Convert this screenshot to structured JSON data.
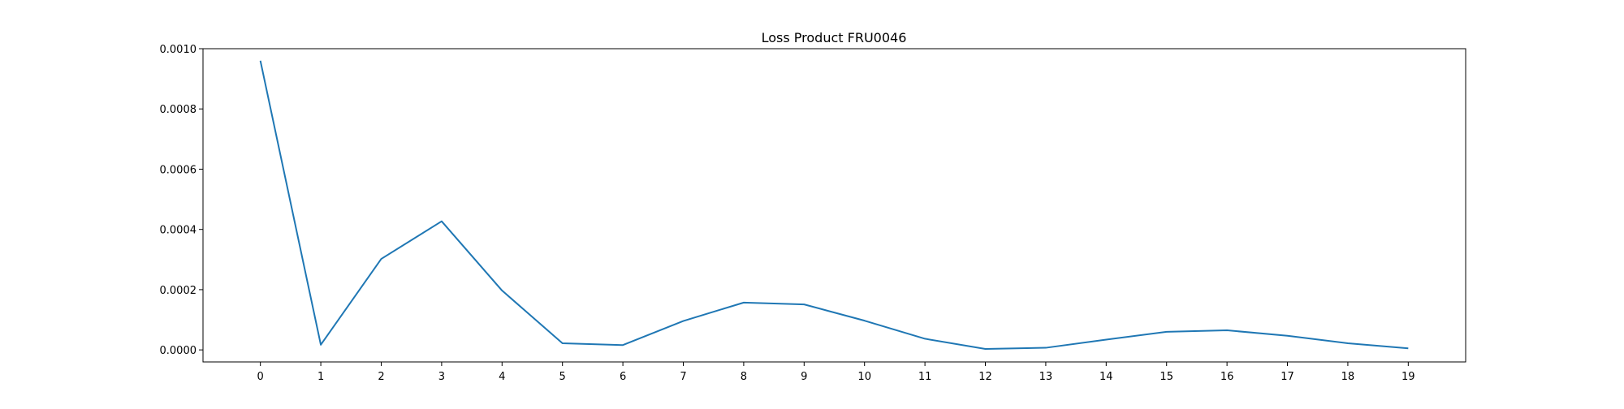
{
  "chart_data": {
    "type": "line",
    "title": "Loss Product FRU0046",
    "xlabel": "",
    "ylabel": "",
    "x": [
      0,
      1,
      2,
      3,
      4,
      5,
      6,
      7,
      8,
      9,
      10,
      11,
      12,
      13,
      14,
      15,
      16,
      17,
      18,
      19
    ],
    "x_tick_labels": [
      "0",
      "1",
      "2",
      "3",
      "4",
      "5",
      "6",
      "7",
      "8",
      "9",
      "10",
      "11",
      "12",
      "13",
      "14",
      "15",
      "16",
      "17",
      "18",
      "19"
    ],
    "xlim": [
      -0.95,
      19.95
    ],
    "ylim": [
      -4e-05,
      0.001
    ],
    "y_ticks": [
      0,
      0.0002,
      0.0004,
      0.0006,
      0.0008,
      0.001
    ],
    "y_tick_labels": [
      "0.0000",
      "0.0002",
      "0.0004",
      "0.0006",
      "0.0008",
      "0.0010"
    ],
    "grid": false,
    "series": [
      {
        "color": "#1f77b4",
        "values": [
          0.00096,
          1.7e-05,
          0.000302,
          0.000427,
          0.000197,
          2.2e-05,
          1.6e-05,
          9.6e-05,
          0.000157,
          0.000151,
          9.7e-05,
          3.7e-05,
          3e-06,
          7e-06,
          3.4e-05,
          6e-05,
          6.5e-05,
          4.7e-05,
          2.2e-05,
          5e-06
        ]
      }
    ]
  }
}
